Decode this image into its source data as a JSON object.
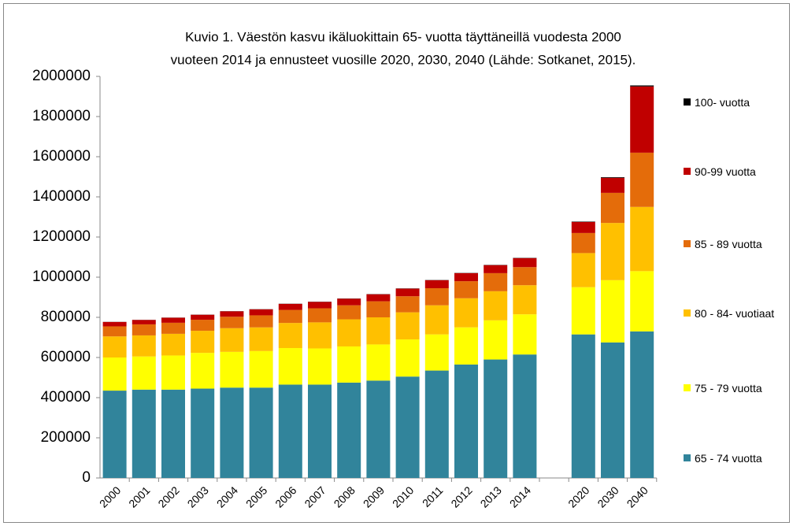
{
  "chart_data": {
    "type": "stacked_bar",
    "title": [
      "Kuvio 1. Väestön kasvu ikäluokittain 65- vuotta täyttäneillä vuodesta 2000",
      "vuoteen 2014 ja ennusteet vuosille 2020, 2030, 2040 (Lähde: Sotkanet, 2015)."
    ],
    "categories": [
      "2000",
      "2001",
      "2002",
      "2003",
      "2004",
      "2005",
      "2006",
      "2007",
      "2008",
      "2009",
      "2010",
      "2011",
      "2012",
      "2013",
      "2014",
      null,
      "2020",
      "2030",
      "2040"
    ],
    "series": [
      {
        "name": "65 - 74 vuotta",
        "color": "#31849b",
        "values": [
          435000,
          440000,
          440000,
          445000,
          450000,
          450000,
          465000,
          465000,
          475000,
          485000,
          505000,
          535000,
          565000,
          590000,
          615000,
          null,
          715000,
          675000,
          730000
        ]
      },
      {
        "name": "75 - 79 vuotta",
        "color": "#ffff00",
        "values": [
          165000,
          165000,
          170000,
          178000,
          178000,
          182000,
          182000,
          180000,
          180000,
          180000,
          185000,
          180000,
          185000,
          195000,
          200000,
          null,
          235000,
          310000,
          300000
        ]
      },
      {
        "name": "80 - 84- vuotiaat",
        "color": "#ffc000",
        "values": [
          105000,
          105000,
          108000,
          110000,
          118000,
          118000,
          125000,
          130000,
          135000,
          135000,
          135000,
          145000,
          145000,
          145000,
          145000,
          null,
          170000,
          285000,
          320000
        ]
      },
      {
        "name": "85 - 89 vuotta",
        "color": "#e46c0a",
        "values": [
          50000,
          55000,
          55000,
          55000,
          57000,
          60000,
          65000,
          70000,
          70000,
          80000,
          80000,
          85000,
          85000,
          90000,
          90000,
          null,
          100000,
          150000,
          270000
        ]
      },
      {
        "name": "90-99 vuotta",
        "color": "#c00000",
        "values": [
          22000,
          22000,
          25000,
          25000,
          27000,
          30000,
          30000,
          32000,
          33000,
          35000,
          38000,
          40000,
          40000,
          40000,
          45000,
          null,
          55000,
          75000,
          330000
        ]
      },
      {
        "name": "100- vuotta",
        "color": "#000000",
        "values": [
          500,
          500,
          600,
          600,
          700,
          700,
          800,
          800,
          900,
          900,
          1000,
          1000,
          1100,
          1200,
          1300,
          null,
          2000,
          3000,
          5000
        ]
      }
    ],
    "ylim": [
      0,
      2000000
    ],
    "yticks": [
      0,
      200000,
      400000,
      600000,
      800000,
      1000000,
      1200000,
      1400000,
      1600000,
      1800000,
      2000000
    ],
    "grid": false,
    "legend": "right"
  }
}
